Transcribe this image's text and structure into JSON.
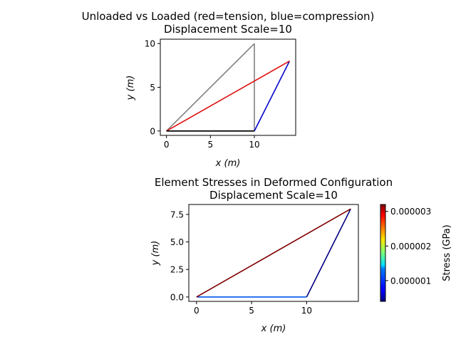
{
  "chart_data": [
    {
      "type": "line",
      "title": "Unloaded vs Loaded (red=tension, blue=compression)",
      "subtitle": "Displacement Scale=10",
      "xlabel": "x (m)",
      "ylabel": "y (m)",
      "xlim": [
        -0.7,
        14.7
      ],
      "ylim": [
        -0.5,
        10.5
      ],
      "xticks": [
        0,
        5,
        10
      ],
      "yticks": [
        0,
        5,
        10
      ],
      "grid": false,
      "series": [
        {
          "role": "undeformed",
          "color": "#000000",
          "x": [
            0,
            10
          ],
          "y": [
            0,
            0
          ]
        },
        {
          "role": "undeformed",
          "color": "#808080",
          "x": [
            10,
            10
          ],
          "y": [
            0,
            10
          ]
        },
        {
          "role": "undeformed",
          "color": "#808080",
          "x": [
            0,
            10
          ],
          "y": [
            0,
            10
          ]
        },
        {
          "role": "deformed",
          "color": "#0000cc",
          "x": [
            10,
            14
          ],
          "y": [
            0,
            8
          ]
        },
        {
          "role": "deformed",
          "color": "#dd1111",
          "x": [
            0,
            14
          ],
          "y": [
            0,
            8
          ]
        },
        {
          "role": "deformed",
          "color": "#000000",
          "x": [
            0,
            10
          ],
          "y": [
            0,
            0
          ]
        }
      ]
    },
    {
      "type": "line",
      "title": "Element Stresses in Deformed Configuration",
      "subtitle": "Displacement Scale=10",
      "xlabel": "x (m)",
      "ylabel": "y (m)",
      "xlim": [
        -0.7,
        14.7
      ],
      "ylim": [
        -0.4,
        8.4
      ],
      "xticks": [
        0,
        5,
        10
      ],
      "yticks": [
        0.0,
        2.5,
        5.0,
        7.5
      ],
      "ytick_labels": [
        "0.0",
        "2.5",
        "5.0",
        "7.5"
      ],
      "grid": false,
      "series": [
        {
          "color": "#0055ee",
          "x": [
            0,
            10
          ],
          "y": [
            0,
            0
          ]
        },
        {
          "color": "#00007f",
          "x": [
            10,
            14
          ],
          "y": [
            0,
            8
          ]
        },
        {
          "color": "#7f0000",
          "x": [
            0,
            14
          ],
          "y": [
            0,
            8
          ]
        }
      ],
      "colorbar": {
        "label": "Stress (GPa)",
        "colormap": "jet",
        "range": [
          4e-07,
          3.2e-06
        ],
        "ticks": [
          1e-06,
          2e-06,
          3e-06
        ],
        "tick_labels": [
          "0.000001",
          "0.000002",
          "0.000003"
        ]
      }
    }
  ]
}
